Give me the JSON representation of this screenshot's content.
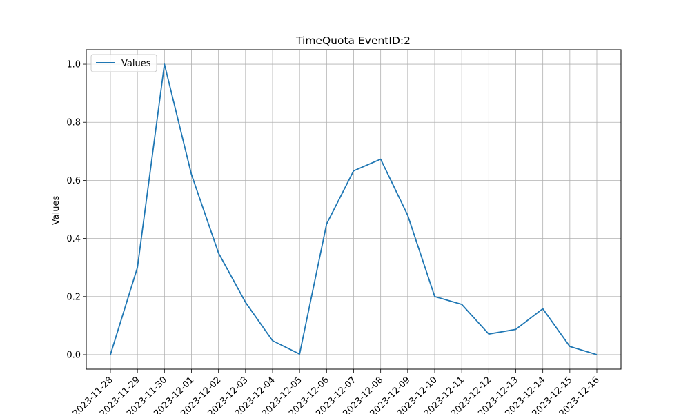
{
  "chart_data": {
    "type": "line",
    "title": "TimeQuota EventID:2",
    "xlabel": "",
    "ylabel": "Values",
    "x": [
      "2023-11-28",
      "2023-11-29",
      "2023-11-30",
      "2023-12-01",
      "2023-12-02",
      "2023-12-03",
      "2023-12-04",
      "2023-12-05",
      "2023-12-06",
      "2023-12-07",
      "2023-12-08",
      "2023-12-09",
      "2023-12-10",
      "2023-12-11",
      "2023-12-12",
      "2023-12-13",
      "2023-12-14",
      "2023-12-15",
      "2023-12-16"
    ],
    "series": [
      {
        "name": "Values",
        "color": "#1f77b4",
        "values": [
          0.0,
          0.3,
          1.0,
          0.62,
          0.35,
          0.18,
          0.048,
          0.002,
          0.45,
          0.633,
          0.673,
          0.48,
          0.2,
          0.173,
          0.071,
          0.087,
          0.158,
          0.028,
          0.0
        ]
      }
    ],
    "ylim": [
      -0.05,
      1.05
    ],
    "yticks": [
      "0.0",
      "0.2",
      "0.4",
      "0.6",
      "0.8",
      "1.0"
    ],
    "grid": true,
    "legend_position": "upper-left"
  }
}
